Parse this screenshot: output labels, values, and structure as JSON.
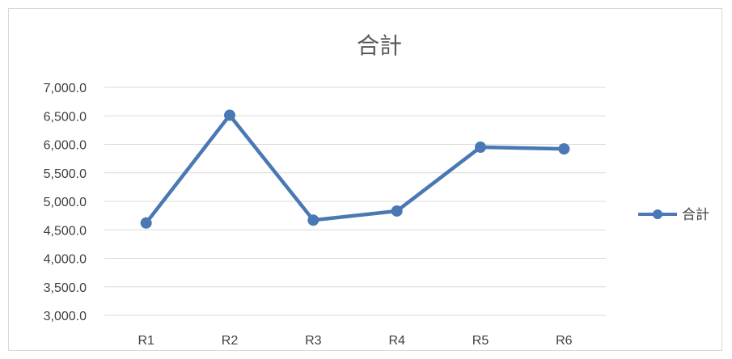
{
  "chart_data": {
    "type": "line",
    "title": "合計",
    "xlabel": "",
    "ylabel": "",
    "categories": [
      "R1",
      "R2",
      "R3",
      "R4",
      "R5",
      "R6"
    ],
    "series": [
      {
        "name": "合計",
        "values": [
          4620,
          6510,
          4670,
          4830,
          5950,
          5920
        ]
      }
    ],
    "ylim": [
      3000,
      7000
    ],
    "y_ticks": [
      "3,000.0",
      "3,500.0",
      "4,000.0",
      "4,500.0",
      "5,000.0",
      "5,500.0",
      "6,000.0",
      "6,500.0",
      "7,000.0"
    ],
    "grid": true,
    "legend_position": "right",
    "colors": {
      "series": "#4a78b4",
      "grid": "#d9d9d9",
      "text": "#404040",
      "title": "#595959"
    }
  }
}
